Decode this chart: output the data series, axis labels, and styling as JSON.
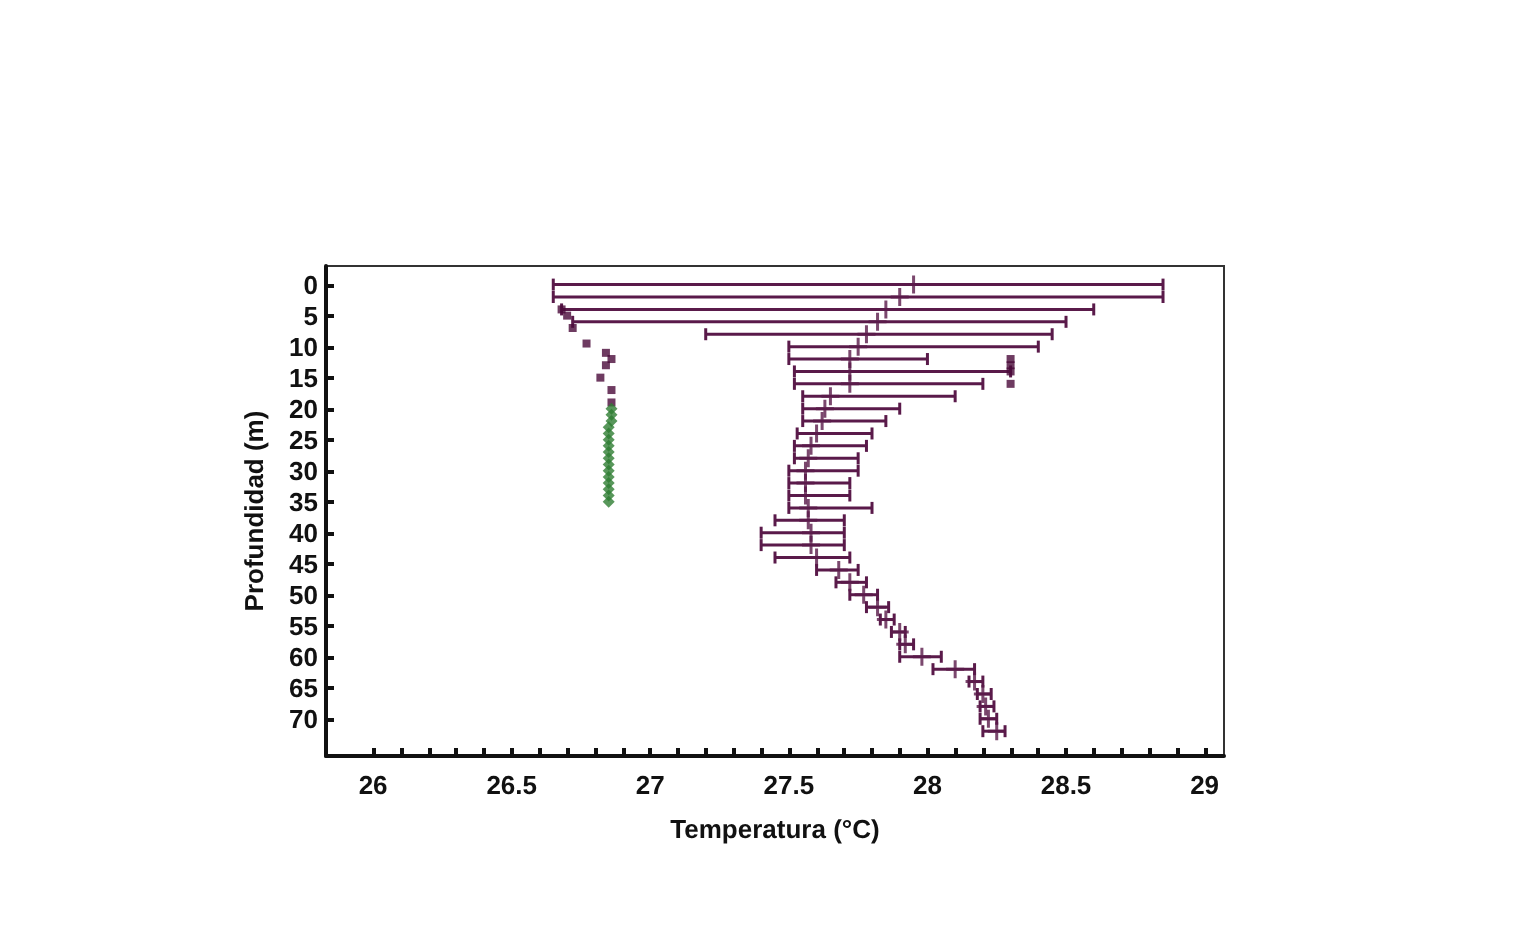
{
  "chart_data": {
    "type": "scatter",
    "xlabel": "Temperatura (°C)",
    "ylabel": "Profundidad (m)",
    "xlim": [
      25.83,
      29.07
    ],
    "ylim": [
      76,
      -3
    ],
    "xticks": [
      26,
      26.5,
      27,
      27.5,
      28,
      28.5,
      29
    ],
    "yticks": [
      0,
      5,
      10,
      15,
      20,
      25,
      30,
      35,
      40,
      45,
      50,
      55,
      60,
      65,
      70
    ],
    "grid": false,
    "series": [
      {
        "color": "#5a1a4a",
        "marker": "cross",
        "x": [
          27.95,
          27.9,
          27.85,
          27.82,
          27.78,
          27.75,
          27.72,
          27.72,
          27.72,
          27.65,
          27.63,
          27.62,
          27.6,
          27.58,
          27.57,
          27.56,
          27.56,
          27.56,
          27.57,
          27.57,
          27.58,
          27.58,
          27.6,
          27.68,
          27.72,
          27.77,
          27.82,
          27.85,
          27.9,
          27.92,
          27.98,
          28.1,
          28.17,
          28.2,
          28.21,
          28.22,
          28.25
        ],
        "values": [
          0,
          2,
          4,
          6,
          8,
          10,
          12,
          14,
          16,
          18,
          20,
          22,
          24,
          26,
          28,
          30,
          32,
          34,
          36,
          38,
          40,
          42,
          44,
          46,
          48,
          50,
          52,
          54,
          56,
          58,
          60,
          62,
          64,
          66,
          68,
          70,
          72
        ],
        "xerrors": [
          [
            26.65,
            28.85
          ],
          [
            26.65,
            28.85
          ],
          [
            26.68,
            28.6
          ],
          [
            26.72,
            28.5
          ],
          [
            27.2,
            28.45
          ],
          [
            27.5,
            28.4
          ],
          [
            27.5,
            28.0
          ],
          [
            27.52,
            28.3
          ],
          [
            27.52,
            28.2
          ],
          [
            27.55,
            28.1
          ],
          [
            27.55,
            27.9
          ],
          [
            27.55,
            27.85
          ],
          [
            27.53,
            27.8
          ],
          [
            27.52,
            27.78
          ],
          [
            27.52,
            27.75
          ],
          [
            27.5,
            27.75
          ],
          [
            27.5,
            27.72
          ],
          [
            27.5,
            27.72
          ],
          [
            27.5,
            27.8
          ],
          [
            27.45,
            27.7
          ],
          [
            27.4,
            27.7
          ],
          [
            27.4,
            27.7
          ],
          [
            27.45,
            27.72
          ],
          [
            27.6,
            27.75
          ],
          [
            27.67,
            27.78
          ],
          [
            27.72,
            27.82
          ],
          [
            27.78,
            27.86
          ],
          [
            27.83,
            27.88
          ],
          [
            27.87,
            27.92
          ],
          [
            27.9,
            27.95
          ],
          [
            27.9,
            28.05
          ],
          [
            28.02,
            28.17
          ],
          [
            28.15,
            28.2
          ],
          [
            28.18,
            28.23
          ],
          [
            28.19,
            28.24
          ],
          [
            28.19,
            28.25
          ],
          [
            28.2,
            28.28
          ]
        ]
      },
      {
        "color": "#4a0a3a",
        "marker": "square",
        "x": [
          26.68,
          26.7,
          26.72,
          26.77,
          26.84,
          26.86,
          26.84,
          26.82,
          26.86,
          26.86,
          28.3,
          28.3,
          28.3,
          28.3
        ],
        "values": [
          4,
          5,
          7,
          9.5,
          11,
          12,
          13,
          15,
          17,
          19,
          12,
          13,
          14,
          16
        ]
      },
      {
        "color": "#2e7d32",
        "marker": "diamond",
        "x": [
          26.86,
          26.86,
          26.86,
          26.85,
          26.85,
          26.85,
          26.85,
          26.85,
          26.85,
          26.85,
          26.85,
          26.85,
          26.85,
          26.85,
          26.85,
          26.85
        ],
        "values": [
          20,
          21,
          22,
          23,
          24,
          25,
          26,
          27,
          28,
          29,
          30,
          31,
          32,
          33,
          34,
          35
        ]
      }
    ]
  }
}
